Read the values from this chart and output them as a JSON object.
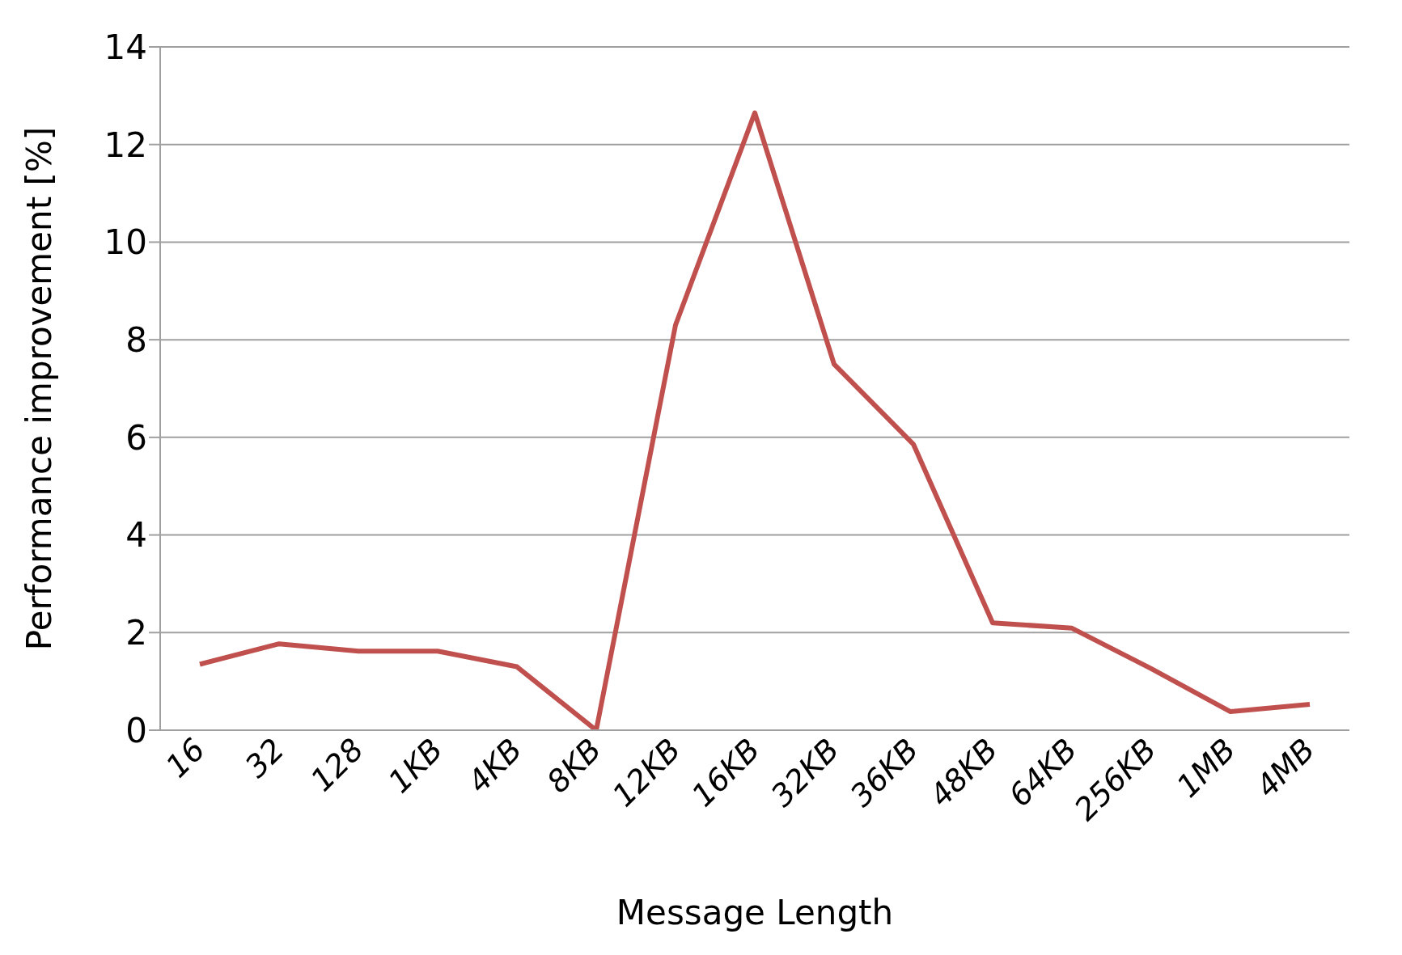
{
  "chart_data": {
    "type": "line",
    "xlabel": "Message Length",
    "ylabel": "Performance improvement  [%]",
    "categories": [
      "16",
      "32",
      "128",
      "1KB",
      "4KB",
      "8KB",
      "12KB",
      "16KB",
      "32KB",
      "36KB",
      "48KB",
      "64KB",
      "256KB",
      "1MB",
      "4MB"
    ],
    "series": [
      {
        "color": "#c0504d",
        "values": [
          1.35,
          1.77,
          1.62,
          1.62,
          1.3,
          0,
          8.3,
          12.65,
          7.5,
          5.86,
          2.2,
          2.09,
          1.26,
          0.38,
          0.53
        ]
      }
    ],
    "ylim": [
      0,
      14
    ],
    "yticks": [
      0,
      2,
      4,
      6,
      8,
      10,
      12,
      14
    ],
    "grid": "y",
    "legend": false,
    "marker": "none",
    "line_style": "solid"
  }
}
